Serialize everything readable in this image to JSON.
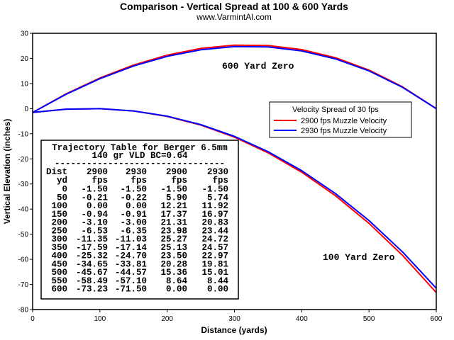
{
  "chart_data": {
    "type": "line",
    "title": "Comparison - Vertical Spread at 100 & 600 Yards",
    "subtitle": "www.VarmintAl.com",
    "xlabel": "Distance (yards)",
    "ylabel": "Vertical Elevation (inches)",
    "xlim": [
      0,
      600
    ],
    "ylim": [
      -80,
      30
    ],
    "x_ticks": [
      "0",
      "100",
      "200",
      "300",
      "400",
      "500",
      "600"
    ],
    "y_ticks": [
      "30",
      "20",
      "10",
      "0",
      "-10",
      "-20",
      "-30",
      "-40",
      "-50",
      "-60",
      "-70",
      "-80"
    ],
    "grid": false,
    "x": [
      0,
      50,
      100,
      150,
      200,
      250,
      300,
      350,
      400,
      450,
      500,
      550,
      600
    ],
    "series": [
      {
        "name": "2900 fps Muzzle Velocity",
        "group": "100 Yard Zero",
        "color": "#ff0000",
        "values": [
          -1.5,
          -0.21,
          0.0,
          -0.94,
          -3.1,
          -6.53,
          -11.35,
          -17.59,
          -25.32,
          -34.65,
          -45.67,
          -58.49,
          -73.23
        ]
      },
      {
        "name": "2930 fps Muzzle Velocity",
        "group": "100 Yard Zero",
        "color": "#0000ff",
        "values": [
          -1.5,
          -0.22,
          0.0,
          -0.91,
          -3.0,
          -6.35,
          -11.03,
          -17.14,
          -24.7,
          -33.81,
          -44.57,
          -57.1,
          -71.5
        ]
      },
      {
        "name": "2900 fps Muzzle Velocity",
        "group": "600 Yard Zero",
        "color": "#ff0000",
        "values": [
          -1.5,
          5.9,
          12.21,
          17.37,
          21.31,
          23.98,
          25.27,
          25.13,
          23.5,
          20.28,
          15.36,
          8.64,
          0.0
        ]
      },
      {
        "name": "2930 fps Muzzle Velocity",
        "group": "600 Yard Zero",
        "color": "#0000ff",
        "values": [
          -1.5,
          5.74,
          11.92,
          16.97,
          20.83,
          23.44,
          24.72,
          24.57,
          22.97,
          19.81,
          15.01,
          8.44,
          0.0
        ]
      }
    ],
    "annotations": [
      "600 Yard Zero",
      "100 Yard Zero"
    ],
    "legend": {
      "title": "Velocity Spread of 30 fps",
      "placement": "right",
      "entries": [
        {
          "label": "2900 fps Muzzle Velocity",
          "color": "#ff0000"
        },
        {
          "label": "2930 fps Muzzle Velocity",
          "color": "#0000ff"
        }
      ]
    },
    "table": {
      "title": "Trajectory Table for Berger 6.5mm",
      "subtitle": "140 gr VLD BC=0.64",
      "rule": "--------------------------------",
      "header1": [
        "Dist",
        "2900",
        "2930",
        "2900",
        "2930"
      ],
      "header2": [
        "yd",
        "fps",
        "fps",
        "fps",
        "fps"
      ],
      "rows": [
        [
          "0",
          "-1.50",
          "-1.50",
          "-1.50",
          "-1.50"
        ],
        [
          "50",
          "-0.21",
          "-0.22",
          "5.90",
          "5.74"
        ],
        [
          "100",
          "0.00",
          "0.00",
          "12.21",
          "11.92"
        ],
        [
          "150",
          "-0.94",
          "-0.91",
          "17.37",
          "16.97"
        ],
        [
          "200",
          "-3.10",
          "-3.00",
          "21.31",
          "20.83"
        ],
        [
          "250",
          "-6.53",
          "-6.35",
          "23.98",
          "23.44"
        ],
        [
          "300",
          "-11.35",
          "-11.03",
          "25.27",
          "24.72"
        ],
        [
          "350",
          "-17.59",
          "-17.14",
          "25.13",
          "24.57"
        ],
        [
          "400",
          "-25.32",
          "-24.70",
          "23.50",
          "22.97"
        ],
        [
          "450",
          "-34.65",
          "-33.81",
          "20.28",
          "19.81"
        ],
        [
          "500",
          "-45.67",
          "-44.57",
          "15.36",
          "15.01"
        ],
        [
          "550",
          "-58.49",
          "-57.10",
          "8.64",
          "8.44"
        ],
        [
          "600",
          "-73.23",
          "-71.50",
          "0.00",
          "0.00"
        ]
      ]
    }
  }
}
